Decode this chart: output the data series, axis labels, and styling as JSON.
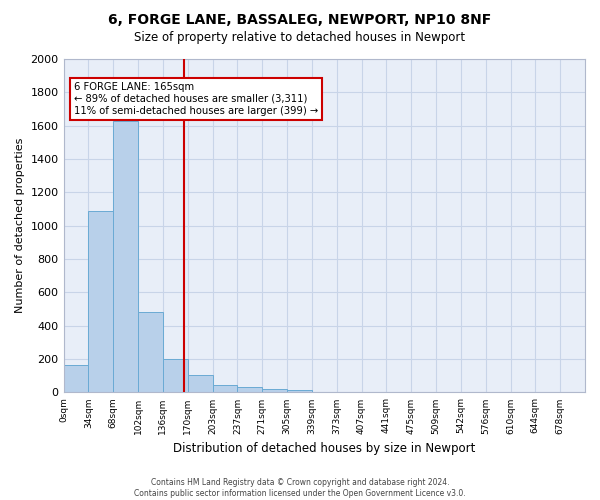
{
  "title": "6, FORGE LANE, BASSALEG, NEWPORT, NP10 8NF",
  "subtitle": "Size of property relative to detached houses in Newport",
  "xlabel": "Distribution of detached houses by size in Newport",
  "ylabel": "Number of detached properties",
  "footer_line1": "Contains HM Land Registry data © Crown copyright and database right 2024.",
  "footer_line2": "Contains public sector information licensed under the Open Government Licence v3.0.",
  "bin_labels": [
    "0sqm",
    "34sqm",
    "68sqm",
    "102sqm",
    "136sqm",
    "170sqm",
    "203sqm",
    "237sqm",
    "271sqm",
    "305sqm",
    "339sqm",
    "373sqm",
    "407sqm",
    "441sqm",
    "475sqm",
    "509sqm",
    "542sqm",
    "576sqm",
    "610sqm",
    "644sqm",
    "678sqm"
  ],
  "bar_values": [
    165,
    1090,
    1630,
    480,
    200,
    105,
    45,
    30,
    20,
    15,
    0,
    0,
    0,
    0,
    0,
    0,
    0,
    0,
    0,
    0
  ],
  "bar_color": "#b8d0ea",
  "bar_edge_color": "#6aaad4",
  "grid_color": "#c8d4e8",
  "background_color": "#e8eef8",
  "annotation_text": "6 FORGE LANE: 165sqm\n← 89% of detached houses are smaller (3,311)\n11% of semi-detached houses are larger (399) →",
  "annotation_box_color": "#ffffff",
  "annotation_box_edge": "#cc0000",
  "red_line_color": "#cc0000",
  "ylim": [
    0,
    2000
  ],
  "yticks": [
    0,
    200,
    400,
    600,
    800,
    1000,
    1200,
    1400,
    1600,
    1800,
    2000
  ],
  "red_line_bin": 4.853
}
